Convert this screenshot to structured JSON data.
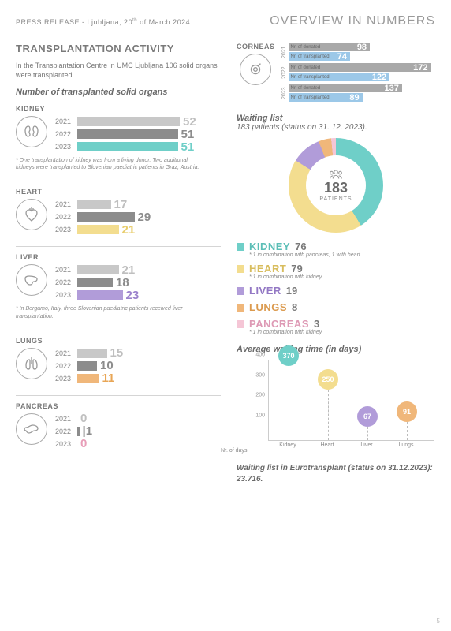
{
  "header": {
    "press_release": "PRESS RELEASE - Ljubljana, 20",
    "press_suffix": " of March 2024",
    "press_sup": "th",
    "overview": "OVERVIEW IN NUMBERS"
  },
  "left": {
    "title": "TRANSPLANTATION ACTIVITY",
    "intro": "In the Transplantation Centre in UMC Ljubljana 106 solid organs were transplanted.",
    "subhead": "Number of transplanted solid organs",
    "max_bar": 52,
    "organs": [
      {
        "name": "KIDNEY",
        "years": [
          {
            "year": "2021",
            "value": 52,
            "color": "#c8c8c8",
            "val_color": "#bfbfbf"
          },
          {
            "year": "2022",
            "value": 51,
            "color": "#8c8c8c",
            "val_color": "#8c8c8c"
          },
          {
            "year": "2023",
            "value": 51,
            "color": "#6fcfc8",
            "val_color": "#6fcfc8"
          }
        ],
        "note": "* One transplantation of kidney was from a living donor. Two additional kidneys were transplanted to Slovenian paediatric patients in Graz, Austria."
      },
      {
        "name": "HEART",
        "years": [
          {
            "year": "2021",
            "value": 17,
            "color": "#c8c8c8",
            "val_color": "#bfbfbf"
          },
          {
            "year": "2022",
            "value": 29,
            "color": "#8c8c8c",
            "val_color": "#8c8c8c"
          },
          {
            "year": "2023",
            "value": 21,
            "color": "#f3dd8f",
            "val_color": "#e8cd6d"
          }
        ]
      },
      {
        "name": "LIVER",
        "years": [
          {
            "year": "2021",
            "value": 21,
            "color": "#c8c8c8",
            "val_color": "#bfbfbf"
          },
          {
            "year": "2022",
            "value": 18,
            "color": "#8c8c8c",
            "val_color": "#8c8c8c"
          },
          {
            "year": "2023",
            "value": 23,
            "color": "#b19cd9",
            "val_color": "#9b82cc"
          }
        ],
        "note": "* In Bergamo, Italy, three Slovenian paediatric patients received liver transplantation."
      },
      {
        "name": "LUNGS",
        "years": [
          {
            "year": "2021",
            "value": 15,
            "color": "#c8c8c8",
            "val_color": "#bfbfbf"
          },
          {
            "year": "2022",
            "value": 10,
            "color": "#8c8c8c",
            "val_color": "#8c8c8c"
          },
          {
            "year": "2023",
            "value": 11,
            "color": "#f0b77a",
            "val_color": "#e8a656"
          }
        ]
      },
      {
        "name": "PANCREAS",
        "years": [
          {
            "year": "2021",
            "value": 0,
            "color": "#c8c8c8",
            "val_color": "#bfbfbf"
          },
          {
            "year": "2022",
            "value": 1,
            "color": "#8c8c8c",
            "val_color": "#8c8c8c",
            "show_pipe": true
          },
          {
            "year": "2023",
            "value": 0,
            "color": "#f5c6d6",
            "val_color": "#e89db8"
          }
        ]
      }
    ]
  },
  "corneas": {
    "title": "CORNEAS",
    "labels": {
      "donated": "Nr. of donated",
      "transplanted": "Nr. of transplanted"
    },
    "max": 172,
    "years": [
      {
        "year": "2021",
        "donated": 98,
        "transplanted": 74
      },
      {
        "year": "2022",
        "donated": 172,
        "transplanted": 122
      },
      {
        "year": "2023",
        "donated": 137,
        "transplanted": 89
      }
    ],
    "colors": {
      "donated": "#a9a9a9",
      "transplanted": "#9cc8e8"
    }
  },
  "waiting": {
    "title": "Waiting list",
    "subtitle": "183 patients (status on 31. 12. 2023).",
    "total": "183",
    "total_label": "PATIENTS",
    "donut_colors": {
      "kidney": "#6fcfc8",
      "heart": "#f3dd8f",
      "liver": "#b19cd9",
      "lungs": "#f0b77a",
      "pancreas": "#f5c6d6"
    },
    "legend": [
      {
        "name": "KIDNEY",
        "value": "76",
        "color": "#6fcfc8",
        "text_color": "#5bbeb6",
        "note": "* 1 in combination with pancreas, 1 with heart"
      },
      {
        "name": "HEART",
        "value": "79",
        "color": "#f3dd8f",
        "text_color": "#d8bd5e",
        "note": "* 1 in combination with kidney"
      },
      {
        "name": "LIVER",
        "value": "19",
        "color": "#b19cd9",
        "text_color": "#9378c4"
      },
      {
        "name": "LUNGS",
        "value": "8",
        "color": "#f0b77a",
        "text_color": "#db9a4e"
      },
      {
        "name": "PANCREAS",
        "value": "3",
        "color": "#f5c6d6",
        "text_color": "#de9ab5",
        "note": "* 1 in combination with kidney"
      }
    ]
  },
  "avg_wait": {
    "title": "Average waiting time (in days)",
    "y_max": 400,
    "y_ticks": [
      100,
      200,
      300,
      400
    ],
    "x_first": "Nr. of days",
    "items": [
      {
        "label": "Kidney",
        "value": 370,
        "color": "#6fcfc8"
      },
      {
        "label": "Heart",
        "value": 250,
        "color": "#f3dd8f"
      },
      {
        "label": "Liver",
        "value": 67,
        "color": "#b19cd9"
      },
      {
        "label": "Lungs",
        "value": 91,
        "color": "#f0b77a"
      }
    ]
  },
  "eurotransplant": "Waiting list in Eurotransplant (status on 31.12.2023):  23.716.",
  "page": "5"
}
